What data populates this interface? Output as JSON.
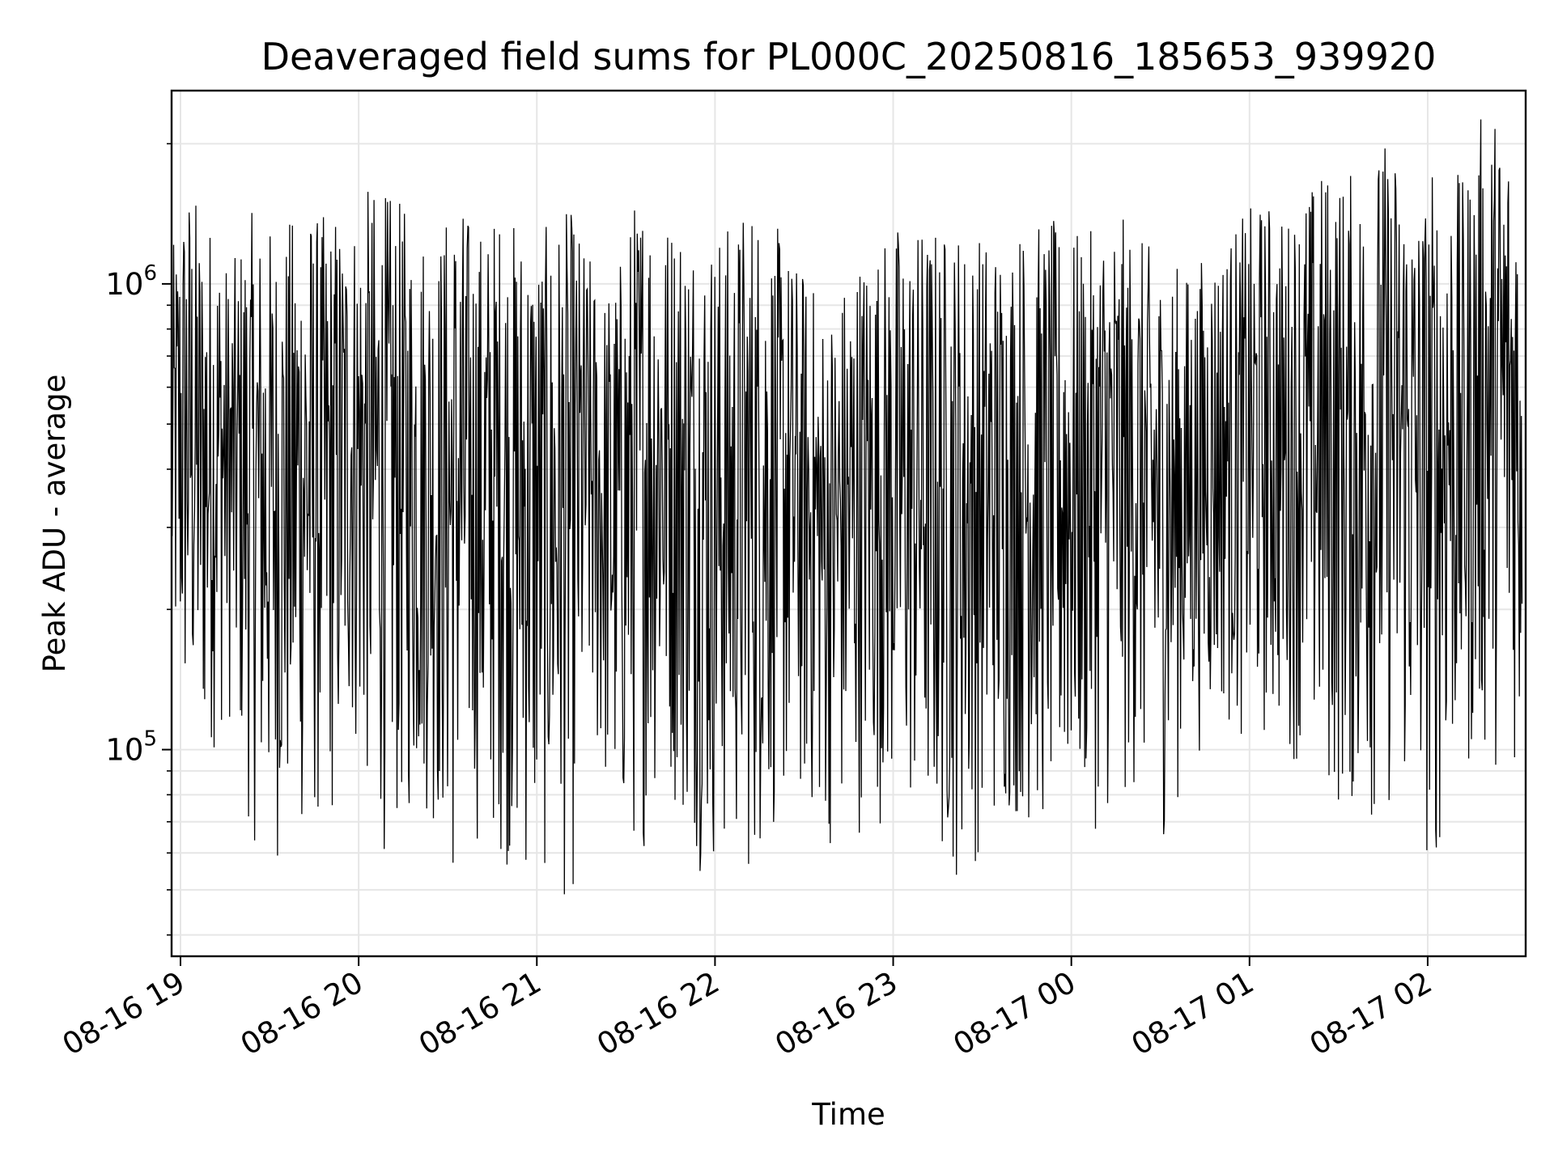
{
  "chart_data": {
    "type": "line",
    "title": "Deaveraged field sums for PL000C_20250816_185653_939920",
    "xlabel": "Time",
    "ylabel": "Peak ADU - average",
    "yscale": "log",
    "grid": true,
    "line_color": "#000000",
    "xlim": [
      "2025-08-16 18:57",
      "2025-08-17 02:33"
    ],
    "ylim": [
      36000,
      2600000
    ],
    "x_ticks": [
      {
        "label": "08-16 19",
        "value": "2025-08-16 19:00"
      },
      {
        "label": "08-16 20",
        "value": "2025-08-16 20:00"
      },
      {
        "label": "08-16 21",
        "value": "2025-08-16 21:00"
      },
      {
        "label": "08-16 22",
        "value": "2025-08-16 22:00"
      },
      {
        "label": "08-16 23",
        "value": "2025-08-16 23:00"
      },
      {
        "label": "08-17 00",
        "value": "2025-08-17 00:00"
      },
      {
        "label": "08-17 01",
        "value": "2025-08-17 01:00"
      },
      {
        "label": "08-17 02",
        "value": "2025-08-17 02:00"
      }
    ],
    "y_ticks": [
      {
        "base": "10",
        "exp": "5",
        "value": 100000
      },
      {
        "base": "10",
        "exp": "6",
        "value": 1000000
      }
    ],
    "series": [
      {
        "x": [
          "2025-08-16 18:57",
          "2025-08-16 19:02",
          "2025-08-16 19:07",
          "2025-08-16 19:12",
          "2025-08-16 19:17",
          "2025-08-16 19:22",
          "2025-08-16 19:27",
          "2025-08-16 19:32",
          "2025-08-16 19:37",
          "2025-08-16 19:42",
          "2025-08-16 19:47",
          "2025-08-16 19:52",
          "2025-08-16 19:57",
          "2025-08-16 20:02",
          "2025-08-16 20:07",
          "2025-08-16 20:12",
          "2025-08-16 20:17",
          "2025-08-16 20:22",
          "2025-08-16 20:27",
          "2025-08-16 20:32",
          "2025-08-16 20:37",
          "2025-08-16 20:42",
          "2025-08-16 20:47",
          "2025-08-16 20:52",
          "2025-08-16 20:57",
          "2025-08-16 21:02",
          "2025-08-16 21:07",
          "2025-08-16 21:12",
          "2025-08-16 21:17",
          "2025-08-16 21:22",
          "2025-08-16 21:27",
          "2025-08-16 21:32",
          "2025-08-16 21:37",
          "2025-08-16 21:42",
          "2025-08-16 21:47",
          "2025-08-16 21:52",
          "2025-08-16 21:57",
          "2025-08-16 22:02",
          "2025-08-16 22:07",
          "2025-08-16 22:12",
          "2025-08-16 22:17",
          "2025-08-16 22:22",
          "2025-08-16 22:27",
          "2025-08-16 22:32",
          "2025-08-16 22:37",
          "2025-08-16 22:42",
          "2025-08-16 22:47",
          "2025-08-16 22:52",
          "2025-08-16 22:57",
          "2025-08-16 23:02",
          "2025-08-16 23:07",
          "2025-08-16 23:12",
          "2025-08-16 23:17",
          "2025-08-16 23:22",
          "2025-08-16 23:27",
          "2025-08-16 23:32",
          "2025-08-16 23:37",
          "2025-08-16 23:42",
          "2025-08-16 23:47",
          "2025-08-16 23:52",
          "2025-08-16 23:57",
          "2025-08-17 00:02",
          "2025-08-17 00:07",
          "2025-08-17 00:12",
          "2025-08-17 00:17",
          "2025-08-17 00:22",
          "2025-08-17 00:27",
          "2025-08-17 00:32",
          "2025-08-17 00:37",
          "2025-08-17 00:42",
          "2025-08-17 00:47",
          "2025-08-17 00:52",
          "2025-08-17 00:57",
          "2025-08-17 01:02",
          "2025-08-17 01:07",
          "2025-08-17 01:12",
          "2025-08-17 01:17",
          "2025-08-17 01:22",
          "2025-08-17 01:27",
          "2025-08-17 01:32",
          "2025-08-17 01:37",
          "2025-08-17 01:42",
          "2025-08-17 01:47",
          "2025-08-17 01:52",
          "2025-08-17 01:57",
          "2025-08-17 02:02",
          "2025-08-17 02:07",
          "2025-08-17 02:12",
          "2025-08-17 02:17",
          "2025-08-17 02:22",
          "2025-08-17 02:27",
          "2025-08-17 02:32"
        ],
        "y_high": [
          1150000,
          1800000,
          1450000,
          1400000,
          1050000,
          1450000,
          1400000,
          1350000,
          1400000,
          1600000,
          1400000,
          1500000,
          1450000,
          1600000,
          1650000,
          1550000,
          1450000,
          1400000,
          1300000,
          1650000,
          1450000,
          1350000,
          1500000,
          1400000,
          1450000,
          1300000,
          1450000,
          1450000,
          1200000,
          1000000,
          1100000,
          1500000,
          1850000,
          1400000,
          1550000,
          1450000,
          1400000,
          1350000,
          1400000,
          1650000,
          1450000,
          1300000,
          1150000,
          1050000,
          900000,
          1000000,
          1200000,
          1250000,
          1300000,
          1400000,
          1350000,
          1400000,
          1350000,
          1400000,
          1300000,
          1350000,
          1300000,
          1400000,
          1350000,
          1400000,
          1350000,
          1300000,
          1300000,
          1550000,
          1400000,
          1300000,
          1200000,
          1150000,
          1100000,
          1100000,
          1250000,
          1300000,
          1400000,
          1500000,
          1550000,
          1400000,
          1650000,
          1700000,
          1900000,
          1750000,
          1800000,
          2000000,
          2100000,
          1950000,
          1600000,
          1850000,
          2000000,
          1650000,
          2300000,
          2400000,
          2350000,
          1800000
        ],
        "y_low": [
          120000,
          90000,
          80000,
          100000,
          110000,
          70000,
          55000,
          55000,
          58000,
          60000,
          62000,
          65000,
          95000,
          75000,
          58000,
          60000,
          65000,
          70000,
          60000,
          45000,
          70000,
          55000,
          60000,
          50000,
          48000,
          50000,
          45000,
          45000,
          95000,
          75000,
          58000,
          55000,
          62000,
          85000,
          70000,
          58000,
          52000,
          50000,
          55000,
          48000,
          60000,
          65000,
          70000,
          66000,
          60000,
          58000,
          62000,
          72000,
          66000,
          65000,
          62000,
          58000,
          52000,
          50000,
          55000,
          60000,
          65000,
          66000,
          64000,
          60000,
          65000,
          68000,
          66000,
          68000,
          70000,
          78000,
          70000,
          62000,
          80000,
          95000,
          105000,
          110000,
          100000,
          95000,
          98000,
          100000,
          90000,
          78000,
          70000,
          68000,
          65000,
          66000,
          68000,
          70000,
          60000,
          48000,
          72000,
          78000,
          85000,
          90000,
          95000,
          78000
        ]
      }
    ]
  }
}
